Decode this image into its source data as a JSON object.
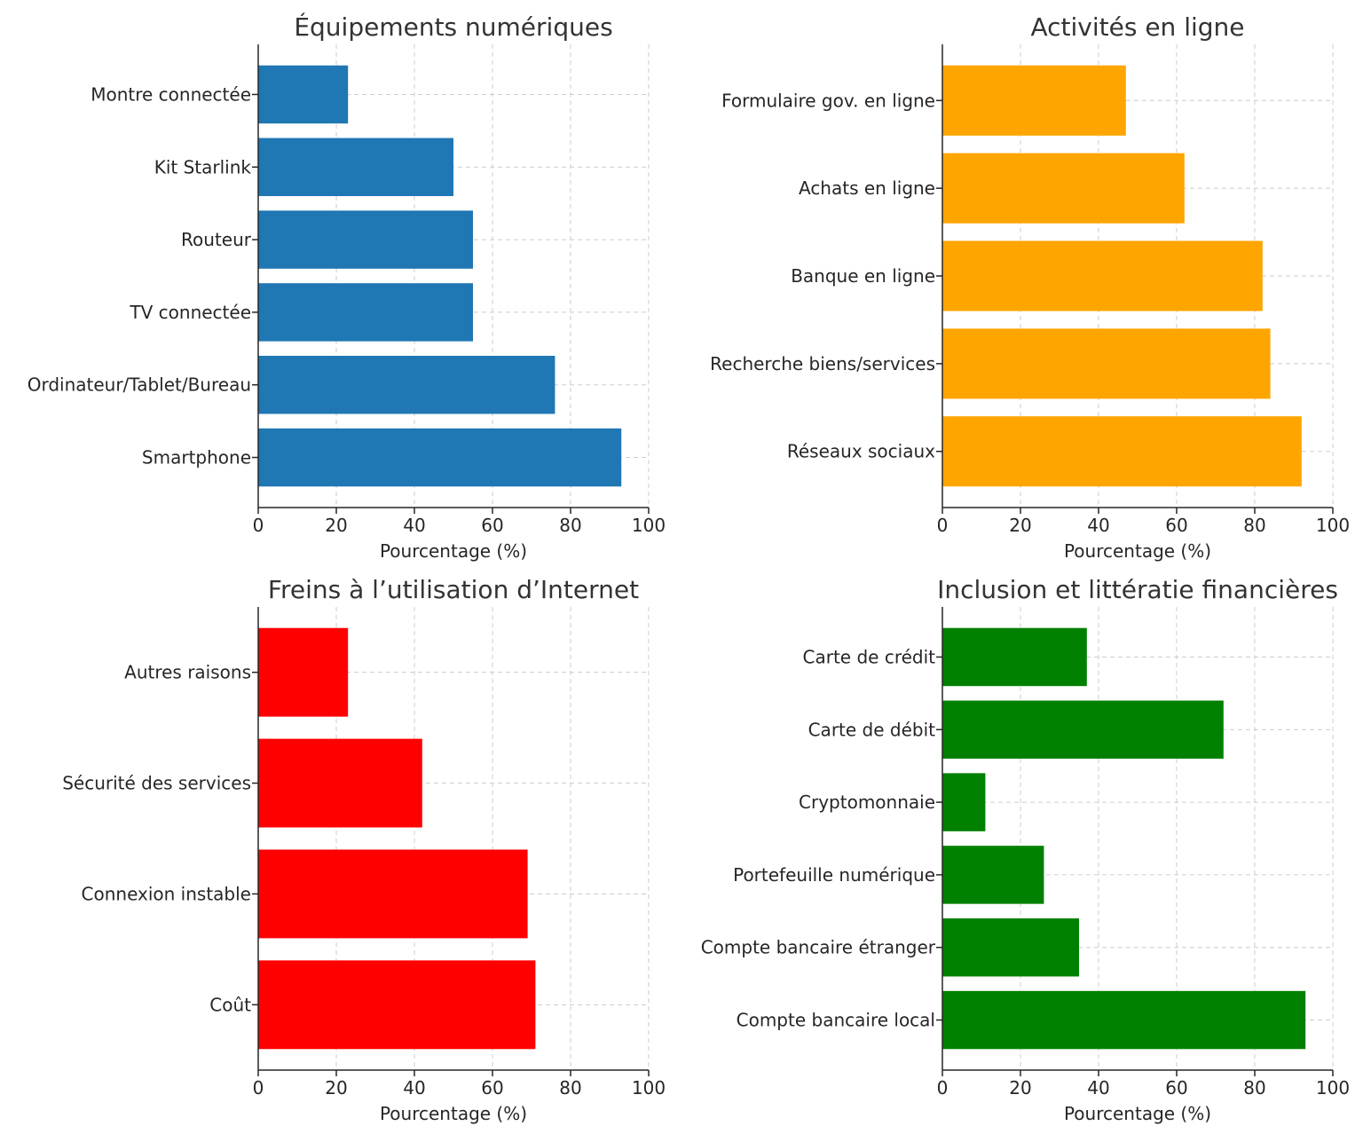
{
  "chart_data": [
    {
      "type": "bar",
      "orientation": "horizontal",
      "title": "Équipements numériques",
      "xlabel": "Pourcentage (%)",
      "ylabel": "",
      "xlim": [
        0,
        100
      ],
      "xticks": [
        "0",
        "20",
        "40",
        "60",
        "80",
        "100"
      ],
      "grid": true,
      "color": "#1f77b4",
      "categories": [
        "Smartphone",
        "Ordinateur/Tablet/Bureau",
        "TV connectée",
        "Routeur",
        "Kit Starlink",
        "Montre connectée"
      ],
      "values": [
        93,
        76,
        55,
        55,
        50,
        23
      ]
    },
    {
      "type": "bar",
      "orientation": "horizontal",
      "title": "Activités en ligne",
      "xlabel": "Pourcentage (%)",
      "ylabel": "",
      "xlim": [
        0,
        100
      ],
      "xticks": [
        "0",
        "20",
        "40",
        "60",
        "80",
        "100"
      ],
      "grid": true,
      "color": "#ffa500",
      "categories": [
        "Réseaux sociaux",
        "Recherche biens/services",
        "Banque en ligne",
        "Achats en ligne",
        "Formulaire gov. en ligne"
      ],
      "values": [
        92,
        84,
        82,
        62,
        47
      ]
    },
    {
      "type": "bar",
      "orientation": "horizontal",
      "title": "Freins à l’utilisation d’Internet",
      "xlabel": "Pourcentage (%)",
      "ylabel": "",
      "xlim": [
        0,
        100
      ],
      "xticks": [
        "0",
        "20",
        "40",
        "60",
        "80",
        "100"
      ],
      "grid": true,
      "color": "#ff0000",
      "categories": [
        "Coût",
        "Connexion instable",
        "Sécurité des services",
        "Autres raisons"
      ],
      "values": [
        71,
        69,
        42,
        23
      ]
    },
    {
      "type": "bar",
      "orientation": "horizontal",
      "title": "Inclusion et littératie financières",
      "xlabel": "Pourcentage (%)",
      "ylabel": "",
      "xlim": [
        0,
        100
      ],
      "xticks": [
        "0",
        "20",
        "40",
        "60",
        "80",
        "100"
      ],
      "grid": true,
      "color": "#008000",
      "categories": [
        "Compte bancaire local",
        "Compte bancaire étranger",
        "Portefeuille numérique",
        "Cryptomonnaie",
        "Carte de débit",
        "Carte de crédit"
      ],
      "values": [
        93,
        35,
        26,
        11,
        72,
        37
      ]
    }
  ]
}
